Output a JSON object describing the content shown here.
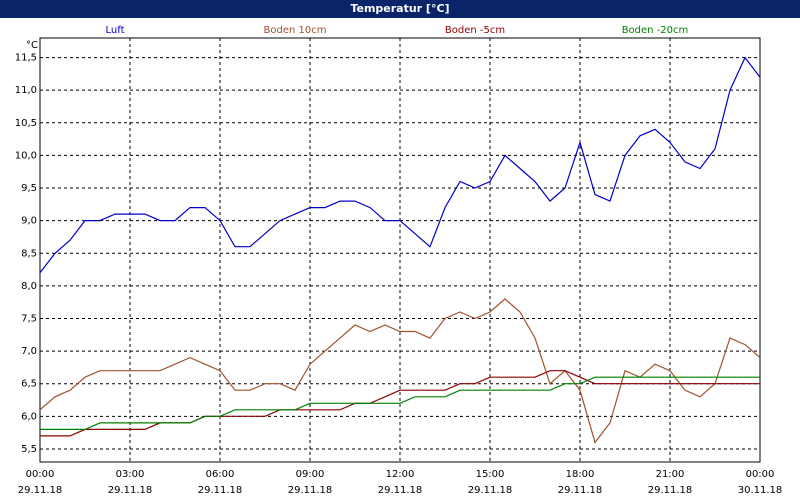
{
  "chart_data": {
    "type": "line",
    "title": "Temperatur [°C]",
    "y_unit": "°C",
    "x": [
      0,
      0.5,
      1,
      1.5,
      2,
      2.5,
      3,
      3.5,
      4,
      4.5,
      5,
      5.5,
      6,
      6.5,
      7,
      7.5,
      8,
      8.5,
      9,
      9.5,
      10,
      10.5,
      11,
      11.5,
      12,
      12.5,
      13,
      13.5,
      14,
      14.5,
      15,
      15.5,
      16,
      16.5,
      17,
      17.5,
      18,
      18.5,
      19,
      19.5,
      20,
      20.5,
      21,
      21.5,
      22,
      22.5,
      23,
      23.5,
      24
    ],
    "series": [
      {
        "name": "Luft",
        "color": "#0000cc",
        "values": [
          8.2,
          8.5,
          8.7,
          9.0,
          9.0,
          9.1,
          9.1,
          9.1,
          9.0,
          9.0,
          9.2,
          9.2,
          9.0,
          8.6,
          8.6,
          8.8,
          9.0,
          9.1,
          9.2,
          9.2,
          9.3,
          9.3,
          9.2,
          9.0,
          9.0,
          8.8,
          8.6,
          9.2,
          9.6,
          9.5,
          9.6,
          10.0,
          9.8,
          9.6,
          9.3,
          9.5,
          10.2,
          9.4,
          9.3,
          10.0,
          10.3,
          10.4,
          10.2,
          9.9,
          9.8,
          10.1,
          11.0,
          11.5,
          11.2
        ]
      },
      {
        "name": "Boden 10cm",
        "color": "#a0522d",
        "values": [
          6.1,
          6.3,
          6.4,
          6.6,
          6.7,
          6.7,
          6.7,
          6.7,
          6.7,
          6.8,
          6.9,
          6.8,
          6.7,
          6.4,
          6.4,
          6.5,
          6.5,
          6.4,
          6.8,
          7.0,
          7.2,
          7.4,
          7.3,
          7.4,
          7.3,
          7.3,
          7.2,
          7.5,
          7.6,
          7.5,
          7.6,
          7.8,
          7.6,
          7.2,
          6.5,
          6.7,
          6.4,
          5.6,
          5.9,
          6.7,
          6.6,
          6.8,
          6.7,
          6.4,
          6.3,
          6.5,
          7.2,
          7.1,
          6.9
        ]
      },
      {
        "name": "Boden -5cm",
        "color": "#8b0000",
        "values": [
          5.7,
          5.7,
          5.7,
          5.8,
          5.8,
          5.8,
          5.8,
          5.8,
          5.9,
          5.9,
          5.9,
          6.0,
          6.0,
          6.0,
          6.0,
          6.0,
          6.1,
          6.1,
          6.1,
          6.1,
          6.1,
          6.2,
          6.2,
          6.3,
          6.4,
          6.4,
          6.4,
          6.4,
          6.5,
          6.5,
          6.6,
          6.6,
          6.6,
          6.6,
          6.7,
          6.7,
          6.6,
          6.5,
          6.5,
          6.5,
          6.5,
          6.5,
          6.5,
          6.5,
          6.5,
          6.5,
          6.5,
          6.5,
          6.5
        ]
      },
      {
        "name": "Boden -20cm",
        "color": "#008000",
        "values": [
          5.8,
          5.8,
          5.8,
          5.8,
          5.9,
          5.9,
          5.9,
          5.9,
          5.9,
          5.9,
          5.9,
          6.0,
          6.0,
          6.1,
          6.1,
          6.1,
          6.1,
          6.1,
          6.2,
          6.2,
          6.2,
          6.2,
          6.2,
          6.2,
          6.2,
          6.3,
          6.3,
          6.3,
          6.4,
          6.4,
          6.4,
          6.4,
          6.4,
          6.4,
          6.4,
          6.5,
          6.5,
          6.6,
          6.6,
          6.6,
          6.6,
          6.6,
          6.6,
          6.6,
          6.6,
          6.6,
          6.6,
          6.6,
          6.6
        ]
      }
    ],
    "xlim": [
      0,
      24
    ],
    "xticks": [
      {
        "value": 0,
        "label": "00:00",
        "sublabel": "29.11.18"
      },
      {
        "value": 3,
        "label": "03:00",
        "sublabel": "29.11.18"
      },
      {
        "value": 6,
        "label": "06:00",
        "sublabel": "29.11.18"
      },
      {
        "value": 9,
        "label": "09:00",
        "sublabel": "29.11.18"
      },
      {
        "value": 12,
        "label": "12:00",
        "sublabel": "29.11.18"
      },
      {
        "value": 15,
        "label": "15:00",
        "sublabel": "29.11.18"
      },
      {
        "value": 18,
        "label": "18:00",
        "sublabel": "29.11.18"
      },
      {
        "value": 21,
        "label": "21:00",
        "sublabel": "29.11.18"
      },
      {
        "value": 24,
        "label": "00:00",
        "sublabel": "30.11.18"
      }
    ],
    "ylim": [
      5.3,
      11.8
    ],
    "yticks": [
      {
        "value": 5.5,
        "label": "5,5"
      },
      {
        "value": 6,
        "label": "6,0"
      },
      {
        "value": 6.5,
        "label": "6,5"
      },
      {
        "value": 7,
        "label": "7,0"
      },
      {
        "value": 7.5,
        "label": "7,5"
      },
      {
        "value": 8,
        "label": "8,0"
      },
      {
        "value": 8.5,
        "label": "8,5"
      },
      {
        "value": 9,
        "label": "9,0"
      },
      {
        "value": 9.5,
        "label": "9,5"
      },
      {
        "value": 10,
        "label": "10,0"
      },
      {
        "value": 10.5,
        "label": "10,5"
      },
      {
        "value": 11,
        "label": "11,0"
      },
      {
        "value": 11.5,
        "label": "11,5"
      }
    ],
    "grid": true,
    "legend": "top"
  }
}
